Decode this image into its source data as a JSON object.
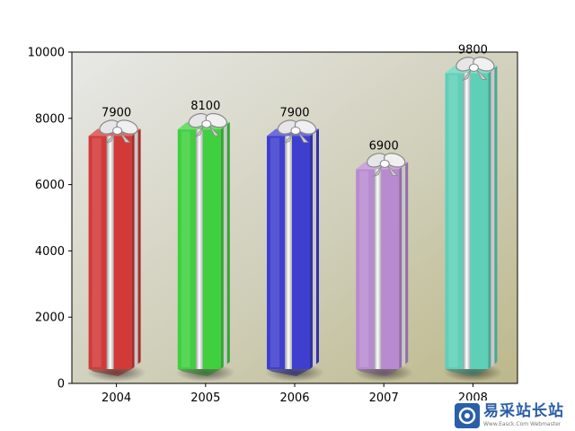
{
  "chart_data": {
    "type": "bar",
    "categories": [
      "2004",
      "2005",
      "2006",
      "2007",
      "2008"
    ],
    "values": [
      7900,
      8100,
      7900,
      6900,
      9800
    ],
    "data_labels": [
      "7900",
      "8100",
      "7900",
      "6900",
      "9800"
    ],
    "bar_colors": [
      "#d23a3a",
      "#3fcf3f",
      "#3f3fcf",
      "#b88ad0",
      "#5fd0b8"
    ],
    "ylim": [
      0,
      10000
    ],
    "yticks": [
      "0",
      "2000",
      "4000",
      "6000",
      "8000",
      "10000"
    ],
    "title": "",
    "xlabel": "",
    "ylabel": "",
    "grid": false,
    "legend": "none",
    "bar_style": "gift-box with silver ribbon and bow",
    "background": "gradient light grey to khaki"
  },
  "watermark": {
    "title": "易采站长站",
    "subtitle": "Www.Easck.Com  Webmaster"
  }
}
